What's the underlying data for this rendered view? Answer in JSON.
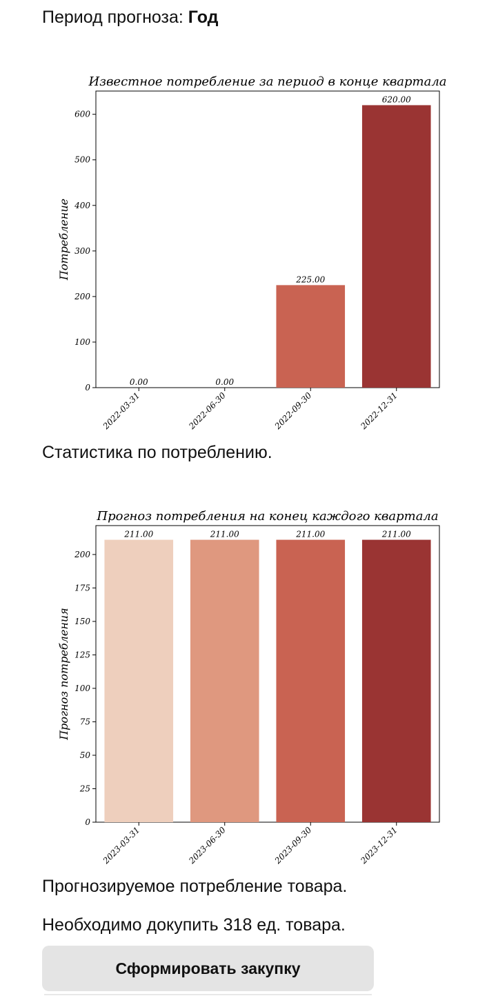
{
  "period": {
    "label": "Период прогноза:",
    "value": "Год"
  },
  "captions": {
    "stats": "Статистика по потреблению.",
    "forecast": "Прогнозируемое потребление товара.",
    "buy_note": "Необходимо докупить 318 ед. товара."
  },
  "button": {
    "label": "Сформировать закупку"
  },
  "colors": {
    "bar_1": "#eecfbd",
    "bar_2": "#df987f",
    "bar_3": "#c96352",
    "bar_4": "#9a3433"
  },
  "chart_data": [
    {
      "type": "bar",
      "title": "Известное потребление за период в конце квартала",
      "xlabel": "",
      "ylabel": "Потребление",
      "categories": [
        "2022-03-31",
        "2022-06-30",
        "2022-09-30",
        "2022-12-31"
      ],
      "values": [
        0,
        0,
        225,
        620
      ],
      "value_labels": [
        "0.00",
        "0.00",
        "225.00",
        "620.00"
      ],
      "yticks": [
        0,
        100,
        200,
        300,
        400,
        500,
        600
      ],
      "ylim": [
        0,
        651
      ],
      "grid": false
    },
    {
      "type": "bar",
      "title": "Прогноз потребления на конец каждого квартала",
      "xlabel": "",
      "ylabel": "Прогноз потребления",
      "categories": [
        "2023-03-31",
        "2023-06-30",
        "2023-09-30",
        "2023-12-31"
      ],
      "values": [
        211,
        211,
        211,
        211
      ],
      "value_labels": [
        "211.00",
        "211.00",
        "211.00",
        "211.00"
      ],
      "yticks": [
        0,
        25,
        50,
        75,
        100,
        125,
        150,
        175,
        200
      ],
      "ylim": [
        0,
        221.6
      ],
      "grid": false
    }
  ]
}
